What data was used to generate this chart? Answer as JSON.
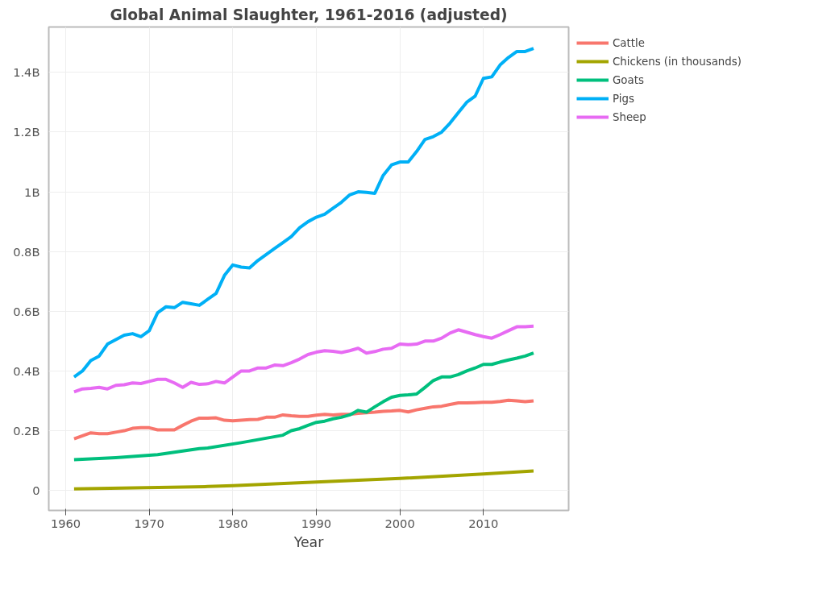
{
  "chart_data": {
    "type": "line",
    "title": "Global Animal Slaughter, 1961-2016 (adjusted)",
    "xlabel": "Year",
    "xlim": [
      1957.97,
      2020.2
    ],
    "xticks": [
      1960,
      1970,
      1980,
      1990,
      2000,
      2010
    ],
    "ylim": [
      -67000000.0,
      1552000000.0
    ],
    "yticks": [
      0,
      {
        "value": 200000000,
        "label": "0.2B"
      },
      {
        "value": 400000000,
        "label": "0.4B"
      },
      {
        "value": 600000000,
        "label": "0.6B"
      },
      {
        "value": 800000000,
        "label": "0.8B"
      },
      {
        "value": 1000000000,
        "label": "1B"
      },
      {
        "value": 1200000000,
        "label": "1.2B"
      },
      {
        "value": 1400000000,
        "label": "1.4B"
      }
    ],
    "grid": true,
    "legend": "top right",
    "line_style": "solid",
    "marker": "none",
    "series": [
      {
        "name": "Cattle",
        "color": "#f8766d",
        "x": [
          1961,
          1962,
          1963,
          1964,
          1965,
          1966,
          1967,
          1968,
          1969,
          1970,
          1971,
          1972,
          1973,
          1974,
          1975,
          1976,
          1977,
          1978,
          1979,
          1980,
          1981,
          1982,
          1983,
          1984,
          1985,
          1986,
          1987,
          1988,
          1989,
          1990,
          1991,
          1992,
          1993,
          1994,
          1995,
          1996,
          1997,
          1998,
          1999,
          2000,
          2001,
          2002,
          2003,
          2004,
          2005,
          2006,
          2007,
          2008,
          2009,
          2010,
          2011,
          2012,
          2013,
          2014,
          2015,
          2016
        ],
        "values": [
          173000000.0,
          183000000.0,
          193000000.0,
          190000000.0,
          190000000.0,
          195000000.0,
          200000000.0,
          208000000.0,
          210000000.0,
          210000000.0,
          203000000.0,
          203000000.0,
          203000000.0,
          218000000.0,
          232000000.0,
          242000000.0,
          242000000.0,
          243000000.0,
          235000000.0,
          233000000.0,
          235000000.0,
          237000000.0,
          238000000.0,
          245000000.0,
          245000000.0,
          253000000.0,
          250000000.0,
          248000000.0,
          248000000.0,
          252000000.0,
          255000000.0,
          253000000.0,
          255000000.0,
          255000000.0,
          258000000.0,
          260000000.0,
          262000000.0,
          265000000.0,
          266000000.0,
          268000000.0,
          263000000.0,
          270000000.0,
          275000000.0,
          280000000.0,
          282000000.0,
          288000000.0,
          293000000.0,
          293000000.0,
          294000000.0,
          295000000.0,
          295000000.0,
          298000000.0,
          302000000.0,
          300000000.0,
          297000000.0,
          300000000.0
        ]
      },
      {
        "name": "Chickens (in thousands)",
        "color": "#a3a500",
        "x": [
          1961,
          1977,
          1980,
          1990,
          2000,
          2010,
          2016
        ],
        "values": [
          5000000.0,
          13000000.0,
          16000000.0,
          28000000.0,
          40000000.0,
          55000000.0,
          65000000.0
        ]
      },
      {
        "name": "Goats",
        "color": "#00bf7d",
        "x": [
          1961,
          1966,
          1971,
          1976,
          1977,
          1981,
          1986,
          1987,
          1988,
          1989,
          1990,
          1991,
          1992,
          1993,
          1994,
          1995,
          1996,
          1997,
          1998,
          1999,
          2000,
          2001,
          2002,
          2003,
          2004,
          2005,
          2006,
          2007,
          2008,
          2009,
          2010,
          2011,
          2012,
          2013,
          2014,
          2015,
          2016
        ],
        "values": [
          103000000.0,
          110000000.0,
          120000000.0,
          140000000.0,
          142000000.0,
          160000000.0,
          185000000.0,
          200000000.0,
          207000000.0,
          218000000.0,
          228000000.0,
          232000000.0,
          240000000.0,
          245000000.0,
          253000000.0,
          268000000.0,
          262000000.0,
          280000000.0,
          297000000.0,
          312000000.0,
          318000000.0,
          320000000.0,
          323000000.0,
          345000000.0,
          368000000.0,
          380000000.0,
          380000000.0,
          388000000.0,
          400000000.0,
          410000000.0,
          422000000.0,
          422000000.0,
          430000000.0,
          437000000.0,
          443000000.0,
          450000000.0,
          460000000.0
        ]
      },
      {
        "name": "Pigs",
        "color": "#00b0f6",
        "x": [
          1961,
          1962,
          1963,
          1964,
          1965,
          1966,
          1967,
          1968,
          1969,
          1970,
          1971,
          1972,
          1973,
          1974,
          1975,
          1976,
          1977,
          1978,
          1979,
          1980,
          1981,
          1982,
          1983,
          1984,
          1985,
          1986,
          1987,
          1988,
          1989,
          1990,
          1991,
          1992,
          1993,
          1994,
          1995,
          1996,
          1997,
          1998,
          1999,
          2000,
          2001,
          2002,
          2003,
          2004,
          2005,
          2006,
          2007,
          2008,
          2009,
          2010,
          2011,
          2012,
          2013,
          2014,
          2015,
          2016
        ],
        "values": [
          380000000.0,
          400000000.0,
          435000000.0,
          450000000.0,
          490000000.0,
          505000000.0,
          520000000.0,
          525000000.0,
          515000000.0,
          535000000.0,
          595000000.0,
          615000000.0,
          612000000.0,
          630000000.0,
          625000000.0,
          620000000.0,
          640000000.0,
          660000000.0,
          720000000.0,
          755000000.0,
          748000000.0,
          745000000.0,
          770000000.0,
          790000000.0,
          810000000.0,
          830000000.0,
          850000000.0,
          880000000.0,
          900000000.0,
          915000000.0,
          925000000.0,
          945000000.0,
          965000000.0,
          990000000.0,
          1000000000.0,
          998000000.0,
          995000000.0,
          1055000000.0,
          1090000000.0,
          1100000000.0,
          1100000000.0,
          1135000000.0,
          1175000000.0,
          1185000000.0,
          1200000000.0,
          1230000000.0,
          1265000000.0,
          1300000000.0,
          1320000000.0,
          1380000000.0,
          1385000000.0,
          1425000000.0,
          1450000000.0,
          1470000000.0,
          1470000000.0,
          1480000000.0
        ]
      },
      {
        "name": "Sheep",
        "color": "#e76bf3",
        "x": [
          1961,
          1962,
          1963,
          1964,
          1965,
          1966,
          1967,
          1968,
          1969,
          1970,
          1971,
          1972,
          1973,
          1974,
          1975,
          1976,
          1977,
          1978,
          1979,
          1980,
          1981,
          1982,
          1983,
          1984,
          1985,
          1986,
          1987,
          1988,
          1989,
          1990,
          1991,
          1992,
          1993,
          1994,
          1995,
          1996,
          1997,
          1998,
          1999,
          2000,
          2001,
          2002,
          2003,
          2004,
          2005,
          2006,
          2007,
          2008,
          2009,
          2010,
          2011,
          2012,
          2013,
          2014,
          2015,
          2016
        ],
        "values": [
          330000000.0,
          340000000.0,
          342000000.0,
          345000000.0,
          340000000.0,
          352000000.0,
          354000000.0,
          360000000.0,
          358000000.0,
          365000000.0,
          372000000.0,
          372000000.0,
          360000000.0,
          345000000.0,
          362000000.0,
          355000000.0,
          357000000.0,
          365000000.0,
          360000000.0,
          380000000.0,
          400000000.0,
          400000000.0,
          410000000.0,
          410000000.0,
          420000000.0,
          418000000.0,
          428000000.0,
          440000000.0,
          455000000.0,
          463000000.0,
          468000000.0,
          466000000.0,
          462000000.0,
          468000000.0,
          476000000.0,
          460000000.0,
          465000000.0,
          473000000.0,
          476000000.0,
          490000000.0,
          488000000.0,
          490000000.0,
          500000000.0,
          500000000.0,
          510000000.0,
          527000000.0,
          538000000.0,
          530000000.0,
          522000000.0,
          515000000.0,
          510000000.0,
          522000000.0,
          535000000.0,
          548000000.0,
          548000000.0,
          550000000.0
        ]
      }
    ]
  }
}
